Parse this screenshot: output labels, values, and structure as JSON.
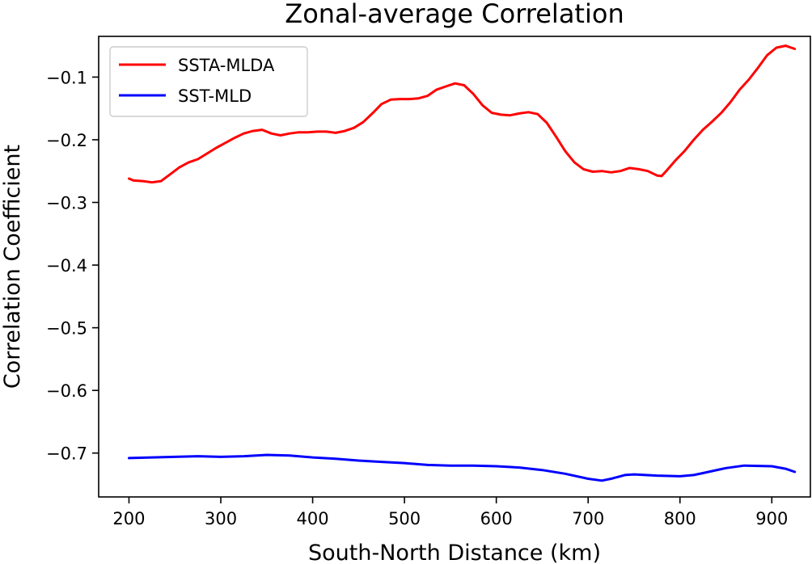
{
  "chart_data": {
    "type": "line",
    "title": "Zonal-average Correlation",
    "xlabel": "South-North Distance (km)",
    "ylabel": "Correlation Coefficient",
    "xlim": [
      167,
      942
    ],
    "ylim": [
      -0.77,
      -0.035
    ],
    "xticks": [
      200,
      300,
      400,
      500,
      600,
      700,
      800,
      900
    ],
    "yticks": [
      -0.1,
      -0.2,
      -0.3,
      -0.4,
      -0.5,
      -0.6,
      -0.7
    ],
    "ytick_labels": [
      "−0.1",
      "−0.2",
      "−0.3",
      "−0.4",
      "−0.5",
      "−0.6",
      "−0.7"
    ],
    "grid": false,
    "legend_position": "upper-left",
    "series": [
      {
        "name": "SSTA-MLDA",
        "color": "#ff0000",
        "x": [
          200,
          205,
          215,
          225,
          235,
          245,
          255,
          265,
          275,
          285,
          295,
          305,
          315,
          325,
          335,
          345,
          355,
          365,
          375,
          385,
          395,
          405,
          415,
          425,
          435,
          445,
          455,
          465,
          475,
          485,
          495,
          505,
          515,
          525,
          535,
          545,
          555,
          565,
          575,
          585,
          595,
          605,
          615,
          625,
          635,
          645,
          655,
          665,
          675,
          685,
          695,
          705,
          715,
          725,
          735,
          745,
          755,
          765,
          775,
          780,
          785,
          795,
          805,
          815,
          825,
          835,
          845,
          855,
          865,
          875,
          885,
          895,
          905,
          915,
          925
        ],
        "values": [
          -0.262,
          -0.265,
          -0.266,
          -0.268,
          -0.266,
          -0.255,
          -0.244,
          -0.236,
          -0.231,
          -0.222,
          -0.213,
          -0.205,
          -0.197,
          -0.19,
          -0.186,
          -0.184,
          -0.19,
          -0.193,
          -0.19,
          -0.188,
          -0.188,
          -0.187,
          -0.187,
          -0.189,
          -0.186,
          -0.181,
          -0.172,
          -0.158,
          -0.143,
          -0.136,
          -0.135,
          -0.135,
          -0.134,
          -0.13,
          -0.12,
          -0.115,
          -0.11,
          -0.113,
          -0.127,
          -0.145,
          -0.157,
          -0.16,
          -0.161,
          -0.158,
          -0.156,
          -0.159,
          -0.173,
          -0.195,
          -0.218,
          -0.236,
          -0.247,
          -0.251,
          -0.25,
          -0.252,
          -0.25,
          -0.245,
          -0.247,
          -0.25,
          -0.257,
          -0.258,
          -0.25,
          -0.233,
          -0.218,
          -0.2,
          -0.184,
          -0.171,
          -0.157,
          -0.14,
          -0.12,
          -0.104,
          -0.085,
          -0.065,
          -0.053,
          -0.05,
          -0.055
        ]
      },
      {
        "name": "SST-MLD",
        "color": "#0000ff",
        "x": [
          200,
          225,
          250,
          275,
          300,
          325,
          350,
          375,
          400,
          425,
          450,
          475,
          500,
          525,
          550,
          575,
          600,
          625,
          650,
          675,
          700,
          715,
          725,
          740,
          750,
          775,
          800,
          815,
          825,
          850,
          870,
          900,
          915,
          925
        ],
        "values": [
          -0.708,
          -0.707,
          -0.706,
          -0.705,
          -0.706,
          -0.705,
          -0.703,
          -0.704,
          -0.707,
          -0.709,
          -0.712,
          -0.714,
          -0.716,
          -0.719,
          -0.72,
          -0.72,
          -0.721,
          -0.723,
          -0.727,
          -0.733,
          -0.741,
          -0.744,
          -0.741,
          -0.735,
          -0.734,
          -0.736,
          -0.737,
          -0.735,
          -0.732,
          -0.724,
          -0.72,
          -0.721,
          -0.725,
          -0.73
        ]
      }
    ]
  }
}
